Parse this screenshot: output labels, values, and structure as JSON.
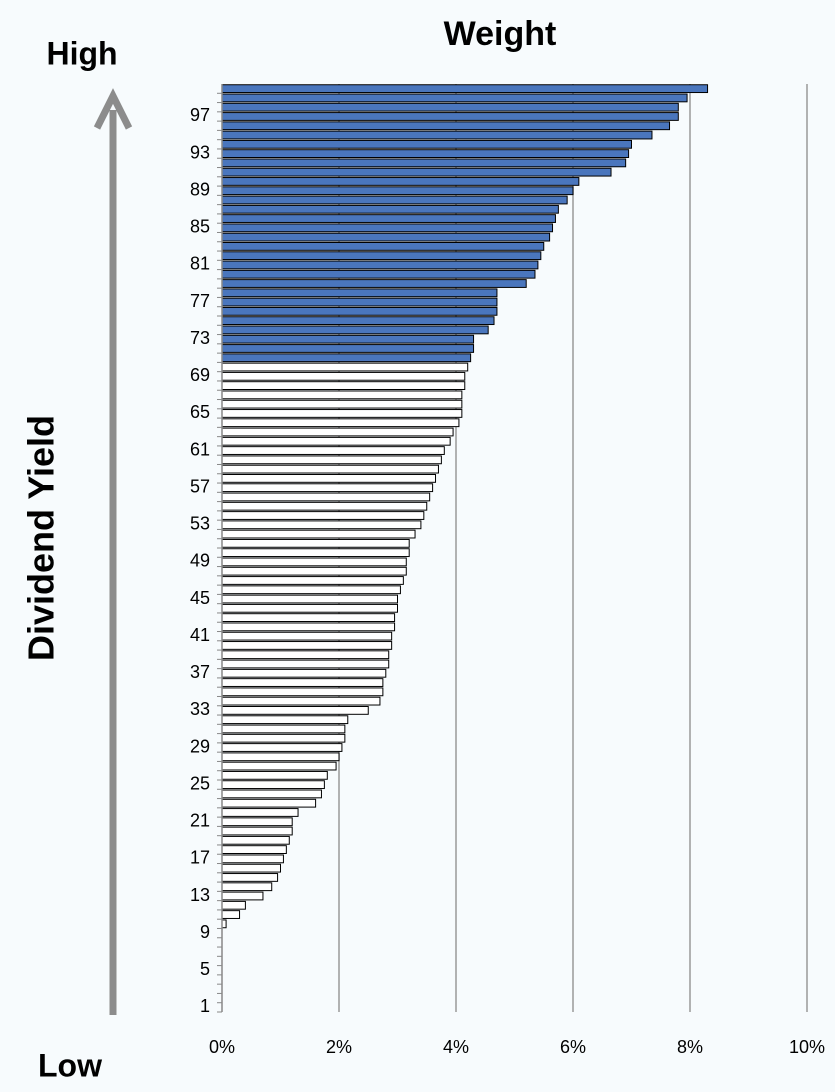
{
  "chart_data": {
    "type": "barh",
    "title": "Weight",
    "y_label": "Dividend Yield",
    "top_label": "High",
    "bottom_label": "Low",
    "categories": [
      "1",
      null,
      null,
      null,
      "5",
      null,
      null,
      null,
      "9",
      null,
      null,
      null,
      "13",
      null,
      null,
      null,
      "17",
      null,
      null,
      null,
      "21",
      null,
      null,
      null,
      "25",
      null,
      null,
      null,
      "29",
      null,
      null,
      null,
      "33",
      null,
      null,
      null,
      "37",
      null,
      null,
      null,
      "41",
      null,
      null,
      null,
      "45",
      null,
      null,
      null,
      "49",
      null,
      null,
      null,
      "53",
      null,
      null,
      null,
      "57",
      null,
      null,
      null,
      "61",
      null,
      null,
      null,
      "65",
      null,
      null,
      null,
      "69",
      null,
      null,
      null,
      "73",
      null,
      null,
      null,
      "77",
      null,
      null,
      null,
      "81",
      null,
      null,
      null,
      "85",
      null,
      null,
      null,
      "89",
      null,
      null,
      null,
      "93",
      null,
      null,
      null,
      "97",
      null,
      null,
      null
    ],
    "values": [
      0,
      0,
      0,
      0,
      0,
      0,
      0,
      0,
      0,
      0.07,
      0.3,
      0.4,
      0.7,
      0.85,
      0.95,
      1.0,
      1.05,
      1.1,
      1.15,
      1.2,
      1.2,
      1.3,
      1.6,
      1.7,
      1.75,
      1.8,
      1.95,
      2.0,
      2.05,
      2.1,
      2.1,
      2.15,
      2.5,
      2.7,
      2.75,
      2.75,
      2.8,
      2.85,
      2.85,
      2.9,
      2.9,
      2.95,
      2.95,
      3.0,
      3.0,
      3.05,
      3.1,
      3.15,
      3.15,
      3.2,
      3.2,
      3.3,
      3.4,
      3.45,
      3.5,
      3.55,
      3.6,
      3.65,
      3.7,
      3.75,
      3.8,
      3.9,
      3.95,
      4.05,
      4.1,
      4.1,
      4.1,
      4.15,
      4.15,
      4.2,
      4.25,
      4.3,
      4.3,
      4.55,
      4.65,
      4.7,
      4.7,
      4.7,
      5.2,
      5.35,
      5.4,
      5.45,
      5.5,
      5.6,
      5.65,
      5.7,
      5.75,
      5.9,
      6.0,
      6.1,
      6.65,
      6.9,
      6.95,
      7.0,
      7.35,
      7.65,
      7.8,
      7.8,
      7.95,
      8.3
    ],
    "colors": [
      "#ffffff",
      "#ffffff",
      "#ffffff",
      "#ffffff",
      "#ffffff",
      "#ffffff",
      "#ffffff",
      "#ffffff",
      "#ffffff",
      "#ffffff",
      "#ffffff",
      "#ffffff",
      "#ffffff",
      "#ffffff",
      "#ffffff",
      "#ffffff",
      "#ffffff",
      "#ffffff",
      "#ffffff",
      "#ffffff",
      "#ffffff",
      "#ffffff",
      "#ffffff",
      "#ffffff",
      "#ffffff",
      "#ffffff",
      "#ffffff",
      "#ffffff",
      "#ffffff",
      "#ffffff",
      "#ffffff",
      "#ffffff",
      "#ffffff",
      "#ffffff",
      "#ffffff",
      "#ffffff",
      "#ffffff",
      "#ffffff",
      "#ffffff",
      "#ffffff",
      "#ffffff",
      "#ffffff",
      "#ffffff",
      "#ffffff",
      "#ffffff",
      "#ffffff",
      "#ffffff",
      "#ffffff",
      "#ffffff",
      "#ffffff",
      "#ffffff",
      "#ffffff",
      "#ffffff",
      "#ffffff",
      "#ffffff",
      "#ffffff",
      "#ffffff",
      "#ffffff",
      "#ffffff",
      "#ffffff",
      "#ffffff",
      "#ffffff",
      "#ffffff",
      "#ffffff",
      "#ffffff",
      "#ffffff",
      "#ffffff",
      "#ffffff",
      "#ffffff",
      "#ffffff",
      "#4a76bd",
      "#4a76bd",
      "#4a76bd",
      "#4a76bd",
      "#4a76bd",
      "#4a76bd",
      "#4a76bd",
      "#4a76bd",
      "#4a76bd",
      "#4a76bd",
      "#4a76bd",
      "#4a76bd",
      "#4a76bd",
      "#4a76bd",
      "#4a76bd",
      "#4a76bd",
      "#4a76bd",
      "#4a76bd",
      "#4a76bd",
      "#4a76bd",
      "#4a76bd",
      "#4a76bd",
      "#4a76bd",
      "#4a76bd",
      "#4a76bd",
      "#4a76bd",
      "#4a76bd",
      "#4a76bd",
      "#4a76bd",
      "#4a76bd"
    ],
    "xlim": [
      0,
      10
    ],
    "xticks": [
      {
        "value": 0,
        "label": "0%"
      },
      {
        "value": 2,
        "label": "2%"
      },
      {
        "value": 4,
        "label": "4%"
      },
      {
        "value": 6,
        "label": "6%"
      },
      {
        "value": 8,
        "label": "8%"
      },
      {
        "value": 10,
        "label": "10%"
      }
    ],
    "grid": true
  }
}
